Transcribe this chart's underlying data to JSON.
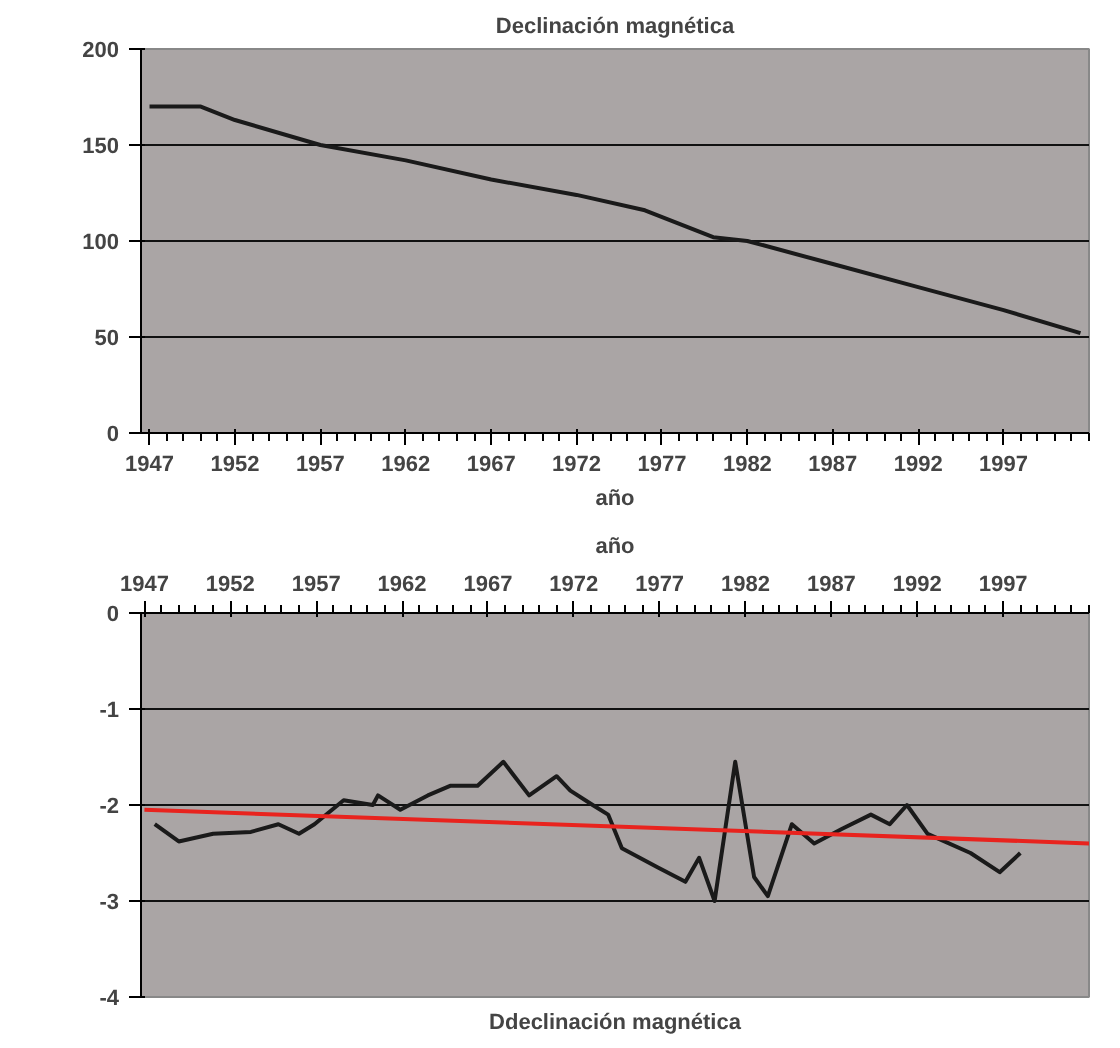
{
  "chart_data": [
    {
      "type": "line",
      "title": "Declinación magnética",
      "xlabel": "año",
      "xlim": [
        1946.5,
        2002
      ],
      "xticks": [
        1947,
        1952,
        1957,
        1962,
        1967,
        1972,
        1977,
        1982,
        1987,
        1992,
        1997
      ],
      "ylim": [
        0,
        200
      ],
      "yticks": [
        0,
        50,
        100,
        150,
        200
      ],
      "grid": "y",
      "series": [
        {
          "color": "#1a1a1a",
          "x": [
            1947,
            1950,
            1952,
            1957,
            1962,
            1967,
            1972,
            1976,
            1980,
            1982,
            1987,
            1992,
            1997,
            2001.5
          ],
          "values": [
            170,
            170,
            163,
            150,
            142,
            132,
            124,
            116,
            102,
            100,
            88,
            76,
            64,
            52
          ]
        }
      ]
    },
    {
      "type": "line",
      "title": "Ddeclinación magnética",
      "xlabel": "año",
      "xlim": [
        1946.8,
        2002
      ],
      "xticks": [
        1947,
        1952,
        1957,
        1962,
        1967,
        1972,
        1977,
        1982,
        1987,
        1992,
        1997
      ],
      "ylim": [
        -4,
        0
      ],
      "yticks": [
        -4,
        -3,
        -2,
        -1,
        0
      ],
      "grid": "y",
      "series": [
        {
          "color": "#1a1a1a",
          "x": [
            1947.6,
            1949,
            1951,
            1953.2,
            1954.8,
            1956,
            1956.9,
            1958.6,
            1960.3,
            1960.6,
            1961.9,
            1963.5,
            1964.8,
            1966.4,
            1967.9,
            1969.4,
            1971,
            1971.8,
            1973.1,
            1974,
            1974.8,
            1976.9,
            1978.5,
            1979.3,
            1980.2,
            1981.4,
            1982.5,
            1983.3,
            1984.7,
            1986,
            1987.6,
            1989.3,
            1990.4,
            1991.4,
            1992.6,
            1995.1,
            1996.8,
            1998
          ],
          "values": [
            -2.2,
            -2.38,
            -2.3,
            -2.28,
            -2.2,
            -2.3,
            -2.2,
            -1.95,
            -2.0,
            -1.9,
            -2.05,
            -1.9,
            -1.8,
            -1.8,
            -1.55,
            -1.9,
            -1.7,
            -1.85,
            -2.0,
            -2.1,
            -2.45,
            -2.65,
            -2.8,
            -2.55,
            -3.0,
            -1.55,
            -2.75,
            -2.95,
            -2.2,
            -2.4,
            -2.25,
            -2.1,
            -2.2,
            -2.0,
            -2.3,
            -2.5,
            -2.7,
            -2.5
          ]
        },
        {
          "type": "line",
          "color": "#e8231e",
          "x": [
            1947,
            2002
          ],
          "values": [
            -2.05,
            -2.4
          ]
        }
      ]
    }
  ]
}
